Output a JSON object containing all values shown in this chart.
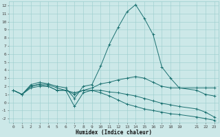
{
  "xlabel": "Humidex (Indice chaleur)",
  "bg_color": "#cce8e8",
  "grid_color": "#99cccc",
  "line_color": "#1a7070",
  "xlim": [
    -0.5,
    23.5
  ],
  "ylim": [
    -2.5,
    12.5
  ],
  "xtick_vals": [
    0,
    1,
    2,
    3,
    4,
    5,
    6,
    7,
    8,
    9,
    10,
    11,
    12,
    13,
    14,
    15,
    16,
    17,
    18,
    19,
    21,
    22,
    23
  ],
  "xtick_labels": [
    "0",
    "1",
    "2",
    "3",
    "4",
    "5",
    "6",
    "7",
    "8",
    "9",
    "10",
    "11",
    "12",
    "13",
    "14",
    "15",
    "16",
    "17",
    "18",
    "19",
    "21",
    "22",
    "23"
  ],
  "ytick_vals": [
    -2,
    -1,
    0,
    1,
    2,
    3,
    4,
    5,
    6,
    7,
    8,
    9,
    10,
    11,
    12
  ],
  "ytick_labels": [
    "-2",
    "-1",
    "0",
    "1",
    "2",
    "3",
    "4",
    "5",
    "6",
    "7",
    "8",
    "9",
    "10",
    "11",
    "12"
  ],
  "series": [
    {
      "x": [
        0,
        1,
        2,
        3,
        4,
        5,
        6,
        7,
        8,
        9,
        10,
        11,
        12,
        13,
        14,
        15,
        16,
        17,
        18,
        19,
        21,
        22,
        23
      ],
      "y": [
        1.5,
        1.0,
        2.2,
        2.5,
        2.3,
        2.0,
        1.8,
        0.5,
        2.0,
        2.2,
        4.5,
        7.2,
        9.3,
        11.2,
        12.1,
        10.4,
        8.4,
        4.4,
        3.0,
        1.8,
        1.8,
        1.8,
        1.8
      ]
    },
    {
      "x": [
        0,
        1,
        2,
        3,
        4,
        5,
        6,
        7,
        8,
        9,
        10,
        11,
        12,
        13,
        14,
        15,
        16,
        17,
        18,
        19,
        21,
        22,
        23
      ],
      "y": [
        1.5,
        1.0,
        2.0,
        2.3,
        2.2,
        1.8,
        1.5,
        1.2,
        1.5,
        1.8,
        2.3,
        2.5,
        2.8,
        3.0,
        3.2,
        3.0,
        2.5,
        2.0,
        1.8,
        1.8,
        1.5,
        1.0,
        0.8
      ]
    },
    {
      "x": [
        0,
        1,
        2,
        3,
        4,
        5,
        6,
        7,
        8,
        9,
        10,
        11,
        12,
        13,
        14,
        15,
        16,
        17,
        18,
        19,
        21,
        22,
        23
      ],
      "y": [
        1.5,
        1.0,
        2.0,
        2.2,
        2.0,
        1.5,
        1.5,
        -0.5,
        1.2,
        1.5,
        1.5,
        1.3,
        1.2,
        1.0,
        0.8,
        0.5,
        0.2,
        -0.1,
        -0.3,
        -0.5,
        -0.8,
        -1.2,
        -1.8
      ]
    },
    {
      "x": [
        0,
        1,
        2,
        3,
        4,
        5,
        6,
        7,
        8,
        9,
        10,
        11,
        12,
        13,
        14,
        15,
        16,
        17,
        18,
        19,
        21,
        22,
        23
      ],
      "y": [
        1.5,
        1.0,
        1.8,
        2.0,
        2.0,
        1.5,
        1.5,
        1.0,
        1.5,
        1.5,
        1.2,
        0.8,
        0.3,
        -0.2,
        -0.5,
        -0.8,
        -1.0,
        -1.2,
        -1.4,
        -1.5,
        -1.8,
        -2.0,
        -2.2
      ]
    }
  ]
}
